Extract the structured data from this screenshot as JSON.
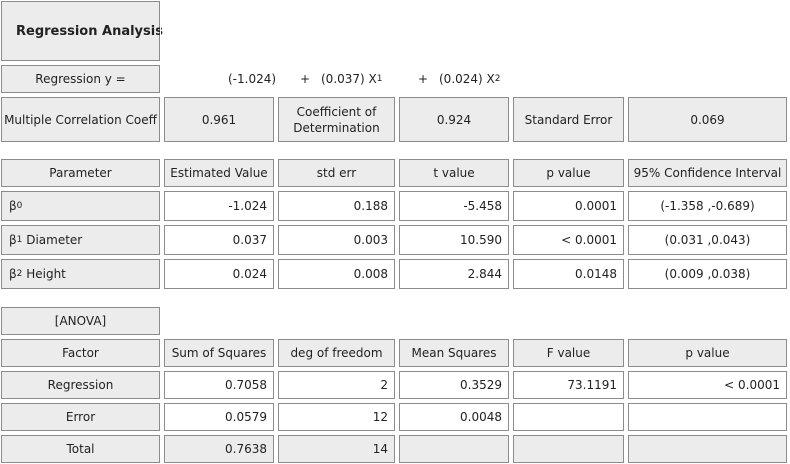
{
  "title": "Regression Analysis",
  "equation": {
    "label": "Regression y =",
    "intercept": "(-1.024)",
    "plus1": "+",
    "coef1": "(0.037) X",
    "coef1_sub": "1",
    "plus2": "+",
    "coef2": "(0.024) X",
    "coef2_sub": "2"
  },
  "summary": {
    "mult_corr_label": "Multiple Correlation Coeff",
    "mult_corr_value": "0.961",
    "coef_det_label": "Coefficient of Determination",
    "coef_det_value": "0.924",
    "std_err_label": "Standard Error",
    "std_err_value": "0.069"
  },
  "param_table": {
    "headers": [
      "Parameter",
      "Estimated Value",
      "std err",
      "t value",
      "p value",
      "95% Confidence Interval"
    ],
    "rows": [
      {
        "name": "β",
        "sub": "0",
        "suffix": "",
        "estimate": "-1.024",
        "std_err": "0.188",
        "t": "-5.458",
        "p": "0.0001",
        "ci": "(-1.358 ,-0.689)"
      },
      {
        "name": "β",
        "sub": "1",
        "suffix": " Diameter",
        "estimate": "0.037",
        "std_err": "0.003",
        "t": "10.590",
        "p": "< 0.0001",
        "ci": "(0.031 ,0.043)"
      },
      {
        "name": "β",
        "sub": "2",
        "suffix": " Height",
        "estimate": "0.024",
        "std_err": "0.008",
        "t": "2.844",
        "p": "0.0148",
        "ci": "(0.009 ,0.038)"
      }
    ]
  },
  "anova": {
    "label": "[ANOVA]",
    "headers": [
      "Factor",
      "Sum of Squares",
      "deg of freedom",
      "Mean Squares",
      "F value",
      "p value"
    ],
    "rows": [
      {
        "factor": "Regression",
        "ss": "0.7058",
        "df": "2",
        "ms": "0.3529",
        "f": "73.1191",
        "p": "< 0.0001"
      },
      {
        "factor": "Error",
        "ss": "0.0579",
        "df": "12",
        "ms": "0.0048",
        "f": "",
        "p": ""
      },
      {
        "factor": "Total",
        "ss": "0.7638",
        "df": "14",
        "ms": "",
        "f": "",
        "p": ""
      }
    ]
  }
}
